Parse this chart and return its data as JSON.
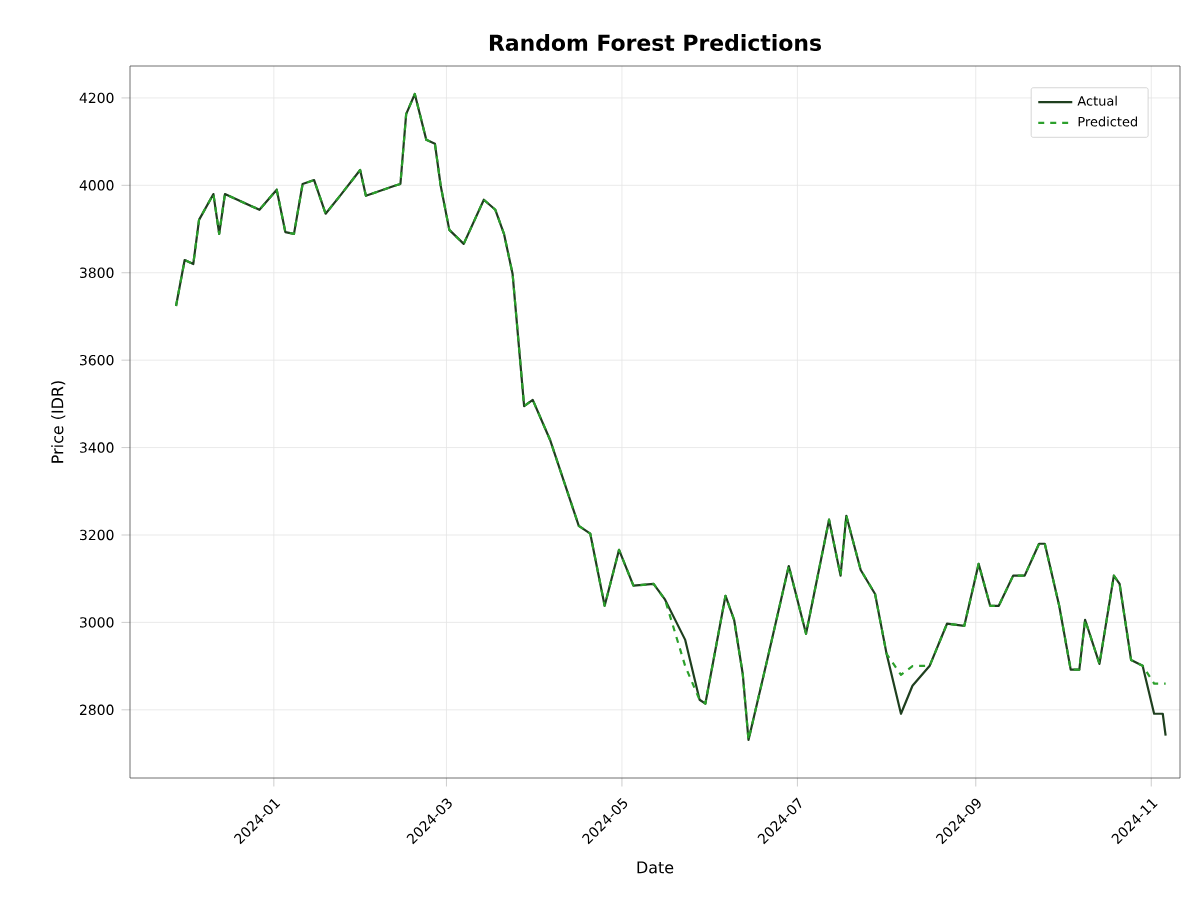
{
  "chart_data": {
    "type": "line",
    "title": "Random Forest Predictions",
    "xlabel": "Date",
    "ylabel": "Price (IDR)",
    "x": [
      "2023-11-28",
      "2023-12-01",
      "2023-12-04",
      "2023-12-06",
      "2023-12-11",
      "2023-12-13",
      "2023-12-15",
      "2023-12-27",
      "2024-01-02",
      "2024-01-05",
      "2024-01-08",
      "2024-01-11",
      "2024-01-15",
      "2024-01-19",
      "2024-01-24",
      "2024-01-31",
      "2024-02-02",
      "2024-02-12",
      "2024-02-14",
      "2024-02-16",
      "2024-02-19",
      "2024-02-23",
      "2024-02-26",
      "2024-02-28",
      "2024-03-02",
      "2024-03-07",
      "2024-03-14",
      "2024-03-18",
      "2024-03-21",
      "2024-03-24",
      "2024-03-28",
      "2024-03-31",
      "2024-04-06",
      "2024-04-16",
      "2024-04-20",
      "2024-04-25",
      "2024-04-30",
      "2024-05-05",
      "2024-05-12",
      "2024-05-16",
      "2024-05-23",
      "2024-05-28",
      "2024-05-30",
      "2024-06-06",
      "2024-06-09",
      "2024-06-12",
      "2024-06-14",
      "2024-06-21",
      "2024-06-28",
      "2024-07-04",
      "2024-07-12",
      "2024-07-16",
      "2024-07-18",
      "2024-07-23",
      "2024-07-28",
      "2024-08-01",
      "2024-08-06",
      "2024-08-10",
      "2024-08-16",
      "2024-08-22",
      "2024-08-28",
      "2024-09-02",
      "2024-09-06",
      "2024-09-09",
      "2024-09-14",
      "2024-09-18",
      "2024-09-23",
      "2024-09-25",
      "2024-09-30",
      "2024-10-04",
      "2024-10-07",
      "2024-10-09",
      "2024-10-14",
      "2024-10-19",
      "2024-10-21",
      "2024-10-25",
      "2024-10-29",
      "2024-11-02",
      "2024-11-05",
      "2024-11-06"
    ],
    "series": [
      {
        "name": "Actual",
        "color": "#1f3f1f",
        "line_style": "solid",
        "values": [
          3724,
          3829,
          3820,
          3921,
          3980,
          3889,
          3980,
          3944,
          3990,
          3893,
          3889,
          4003,
          4012,
          3935,
          3976,
          4035,
          3976,
          3999,
          4003,
          4163,
          4209,
          4104,
          4095,
          3999,
          3898,
          3866,
          3967,
          3944,
          3889,
          3797,
          3495,
          3509,
          3418,
          3221,
          3203,
          3038,
          3166,
          3084,
          3088,
          3052,
          2960,
          2823,
          2814,
          3061,
          3006,
          2882,
          2731,
          2928,
          3129,
          2974,
          3235,
          3107,
          3244,
          3120,
          3065,
          2928,
          2791,
          2855,
          2901,
          2997,
          2992,
          3134,
          3038,
          3038,
          3107,
          3107,
          3180,
          3180,
          3038,
          2892,
          2892,
          3006,
          2905,
          3107,
          3088,
          2914,
          2901,
          2791,
          2791,
          2741
        ]
      },
      {
        "name": "Predicted",
        "color": "#2ca02c",
        "line_style": "dashed",
        "values": [
          3724,
          3829,
          3820,
          3921,
          3980,
          3889,
          3980,
          3944,
          3990,
          3893,
          3889,
          4003,
          4012,
          3935,
          3976,
          4035,
          3976,
          3999,
          4003,
          4163,
          4209,
          4104,
          4095,
          3999,
          3898,
          3866,
          3967,
          3944,
          3889,
          3797,
          3495,
          3509,
          3418,
          3221,
          3203,
          3038,
          3166,
          3084,
          3088,
          3052,
          2900,
          2823,
          2814,
          3061,
          3006,
          2882,
          2731,
          2928,
          3129,
          2974,
          3235,
          3107,
          3244,
          3120,
          3065,
          2928,
          2880,
          2900,
          2901,
          2997,
          2992,
          3134,
          3038,
          3038,
          3107,
          3107,
          3180,
          3180,
          3038,
          2892,
          2892,
          3006,
          2905,
          3107,
          3088,
          2914,
          2901,
          2860,
          2860,
          2860
        ]
      }
    ],
    "xlim": [
      "2023-11-12",
      "2024-11-11"
    ],
    "ylim": [
      2644,
      4273
    ],
    "xticks": [
      "2024-01",
      "2024-03",
      "2024-05",
      "2024-07",
      "2024-09",
      "2024-11"
    ],
    "yticks": [
      2800,
      3000,
      3200,
      3400,
      3600,
      3800,
      4000,
      4200
    ],
    "grid": true,
    "legend": "top right"
  }
}
